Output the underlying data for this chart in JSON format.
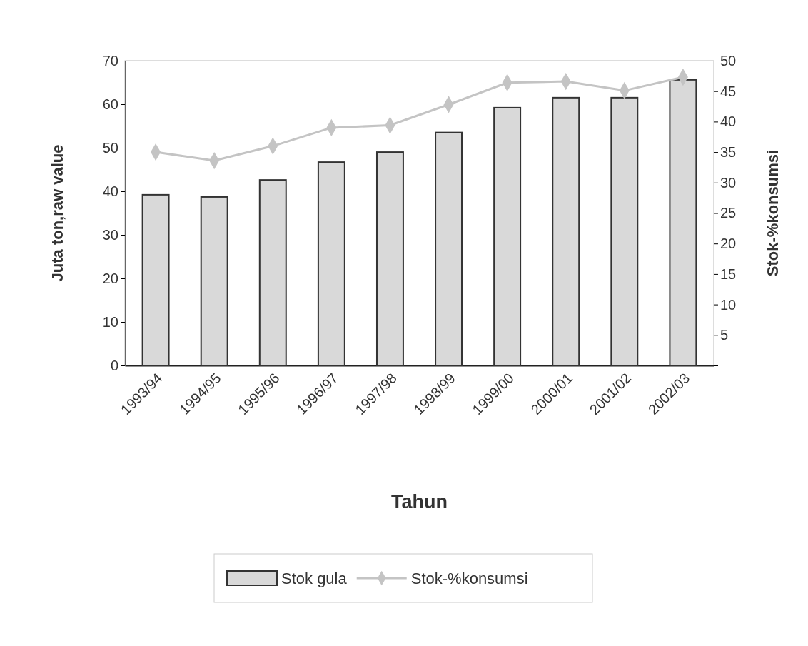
{
  "chart_data": {
    "type": "bar",
    "xlabel": "Tahun",
    "ylabel": "Juta ton,raw value",
    "y2label": "Stok-%konsumsi",
    "categories": [
      "1993/94",
      "1994/95",
      "1995/96",
      "1996/97",
      "1997/98",
      "1998/99",
      "1999/00",
      "2000/01",
      "2001/02",
      "2002/03"
    ],
    "series": [
      {
        "name": "Stok gula",
        "color": "#d9d9d9",
        "values": [
          39.2,
          38.7,
          42.6,
          46.7,
          49,
          53.5,
          59.2,
          61.5,
          61.5,
          65.6
        ]
      },
      {
        "name": "Stok-%konsumsi",
        "type": "line",
        "axis": "y2",
        "color": "#c4c4c4",
        "marker": "diamond",
        "values": [
          35,
          33.6,
          36,
          39,
          39.4,
          42.8,
          46.4,
          46.6,
          45.1,
          47.3
        ]
      }
    ],
    "ylim": [
      0,
      70
    ],
    "yticks": [
      0,
      10,
      20,
      30,
      40,
      50,
      60,
      70
    ],
    "y2lim": [
      0,
      50
    ],
    "y2ticks": [
      {
        "value": 0,
        "label": null
      },
      5,
      10,
      15,
      20,
      25,
      30,
      35,
      40,
      45,
      50
    ],
    "grid": false,
    "legend": "bottom"
  }
}
